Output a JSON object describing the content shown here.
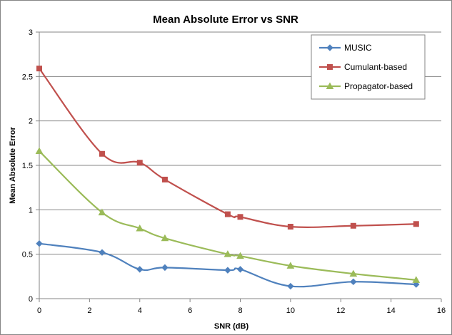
{
  "chart_data": {
    "type": "line",
    "title": "Mean Absolute Error vs SNR",
    "xlabel": "SNR (dB)",
    "ylabel": "Mean Absolute Error",
    "xlim": [
      0,
      16
    ],
    "ylim": [
      0,
      3
    ],
    "xticks": [
      "0",
      "2",
      "4",
      "6",
      "8",
      "10",
      "12",
      "14",
      "16"
    ],
    "yticks": [
      "0",
      "0.5",
      "1",
      "1.5",
      "2",
      "2.5",
      "3"
    ],
    "grid": "horizontal",
    "legend_position": "top-right",
    "series": [
      {
        "name": "MUSIC",
        "color": "#4F81BD",
        "marker": "diamond",
        "x": [
          0,
          2.5,
          4,
          5,
          7.5,
          8,
          10,
          12.5,
          15
        ],
        "y": [
          0.62,
          0.52,
          0.33,
          0.35,
          0.32,
          0.33,
          0.14,
          0.19,
          0.16
        ]
      },
      {
        "name": "Cumulant-based",
        "color": "#C0504D",
        "marker": "square",
        "x": [
          0,
          2.5,
          4,
          5,
          7.5,
          8,
          10,
          12.5,
          15
        ],
        "y": [
          2.59,
          1.63,
          1.53,
          1.34,
          0.95,
          0.92,
          0.81,
          0.82,
          0.84
        ]
      },
      {
        "name": "Propagator-based",
        "color": "#9BBB59",
        "marker": "triangle",
        "x": [
          0,
          2.5,
          4,
          5,
          7.5,
          8,
          10,
          12.5,
          15
        ],
        "y": [
          1.66,
          0.97,
          0.79,
          0.68,
          0.5,
          0.48,
          0.37,
          0.28,
          0.21
        ]
      }
    ]
  }
}
